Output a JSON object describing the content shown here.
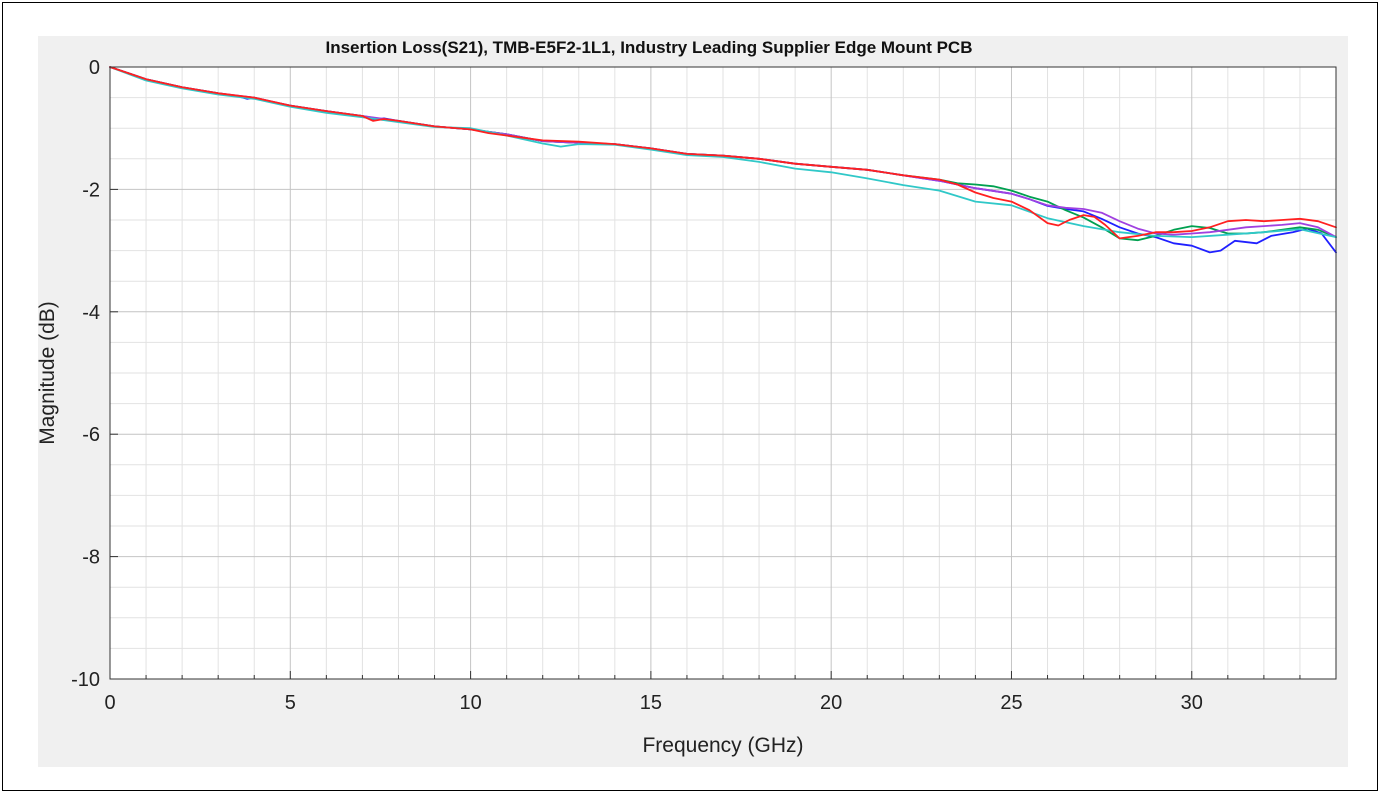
{
  "chart_data": {
    "type": "line",
    "title": "Insertion Loss(S21), TMB-E5F2-1L1, Industry Leading Supplier Edge Mount PCB",
    "xlabel": "Frequency (GHz)",
    "ylabel": "Magnitude (dB)",
    "xlim": [
      0,
      34
    ],
    "ylim": [
      -10,
      0
    ],
    "xticks": [
      0,
      5,
      10,
      15,
      20,
      25,
      30
    ],
    "yticks": [
      0,
      -2,
      -4,
      -6,
      -8,
      -10
    ],
    "grid": true,
    "minor_grid": true,
    "legend": "none",
    "series": [
      {
        "color": "#2020ff",
        "x": [
          0,
          1,
          2,
          3,
          3.5,
          3.8,
          4,
          4.5,
          5,
          6,
          7,
          7.3,
          7.6,
          8,
          9,
          10,
          11,
          12,
          13,
          14,
          15,
          16,
          17,
          18,
          19,
          20,
          21,
          22,
          23,
          24,
          25,
          25.5,
          26,
          26.5,
          27,
          27.5,
          28,
          28.5,
          29,
          29.5,
          30,
          30.5,
          30.8,
          31.2,
          31.8,
          32.2,
          32.8,
          33.2,
          33.6,
          34
        ],
        "y": [
          0,
          -0.2,
          -0.33,
          -0.43,
          -0.47,
          -0.52,
          -0.5,
          -0.57,
          -0.63,
          -0.72,
          -0.8,
          -0.86,
          -0.84,
          -0.88,
          -0.97,
          -1.02,
          -1.1,
          -1.21,
          -1.24,
          -1.26,
          -1.33,
          -1.42,
          -1.45,
          -1.5,
          -1.58,
          -1.63,
          -1.68,
          -1.77,
          -1.86,
          -1.98,
          -2.07,
          -2.16,
          -2.27,
          -2.32,
          -2.36,
          -2.48,
          -2.62,
          -2.72,
          -2.78,
          -2.88,
          -2.92,
          -3.03,
          -3.0,
          -2.84,
          -2.88,
          -2.76,
          -2.7,
          -2.64,
          -2.72,
          -3.03
        ]
      },
      {
        "color": "#00a050",
        "x": [
          0,
          1,
          2,
          3,
          3.5,
          4,
          4.5,
          5,
          6,
          7,
          7.5,
          8,
          9,
          10,
          11,
          12,
          13,
          14,
          15,
          16,
          17,
          18,
          19,
          20,
          21,
          22,
          23,
          23.5,
          24,
          24.5,
          25,
          25.5,
          26,
          26.5,
          27,
          27.5,
          28,
          28.5,
          29,
          29.5,
          30,
          30.5,
          31,
          31.5,
          32,
          32.5,
          33,
          33.5,
          34
        ],
        "y": [
          0,
          -0.2,
          -0.33,
          -0.43,
          -0.47,
          -0.5,
          -0.57,
          -0.63,
          -0.72,
          -0.8,
          -0.85,
          -0.88,
          -0.97,
          -1.02,
          -1.1,
          -1.21,
          -1.24,
          -1.26,
          -1.33,
          -1.42,
          -1.45,
          -1.5,
          -1.58,
          -1.63,
          -1.68,
          -1.77,
          -1.84,
          -1.9,
          -1.92,
          -1.95,
          -2.02,
          -2.12,
          -2.2,
          -2.34,
          -2.46,
          -2.62,
          -2.8,
          -2.83,
          -2.76,
          -2.66,
          -2.6,
          -2.63,
          -2.72,
          -2.72,
          -2.7,
          -2.66,
          -2.62,
          -2.66,
          -2.78
        ]
      },
      {
        "color": "#a040e0",
        "x": [
          0,
          1,
          2,
          3,
          4,
          5,
          6,
          7,
          8,
          9,
          10,
          11,
          12,
          13,
          14,
          15,
          16,
          17,
          18,
          19,
          20,
          21,
          22,
          23,
          24,
          25,
          25.5,
          26,
          26.5,
          27,
          27.5,
          28,
          28.5,
          29,
          29.5,
          30,
          30.5,
          31,
          31.5,
          32,
          32.5,
          33,
          33.5,
          34
        ],
        "y": [
          0,
          -0.2,
          -0.33,
          -0.43,
          -0.5,
          -0.63,
          -0.72,
          -0.8,
          -0.88,
          -0.97,
          -1.02,
          -1.1,
          -1.21,
          -1.24,
          -1.26,
          -1.33,
          -1.42,
          -1.45,
          -1.5,
          -1.58,
          -1.63,
          -1.68,
          -1.77,
          -1.86,
          -1.98,
          -2.07,
          -2.16,
          -2.26,
          -2.3,
          -2.32,
          -2.38,
          -2.52,
          -2.64,
          -2.72,
          -2.74,
          -2.72,
          -2.7,
          -2.66,
          -2.62,
          -2.6,
          -2.58,
          -2.55,
          -2.62,
          -2.78
        ]
      },
      {
        "color": "#30c8c8",
        "x": [
          0,
          1,
          2,
          3,
          4,
          5,
          6,
          7,
          8,
          9,
          10,
          11,
          12,
          12.5,
          13,
          14,
          15,
          16,
          17,
          18,
          19,
          20,
          21,
          22,
          23,
          24,
          25,
          26,
          27,
          28,
          29,
          30,
          31,
          32,
          33,
          34
        ],
        "y": [
          0,
          -0.22,
          -0.35,
          -0.45,
          -0.52,
          -0.65,
          -0.75,
          -0.82,
          -0.9,
          -0.98,
          -1.0,
          -1.12,
          -1.25,
          -1.3,
          -1.26,
          -1.27,
          -1.35,
          -1.44,
          -1.47,
          -1.55,
          -1.66,
          -1.72,
          -1.82,
          -1.93,
          -2.02,
          -2.2,
          -2.26,
          -2.47,
          -2.6,
          -2.7,
          -2.76,
          -2.78,
          -2.74,
          -2.7,
          -2.65,
          -2.78
        ]
      },
      {
        "color": "#ff2020",
        "x": [
          0,
          1,
          2,
          3,
          4,
          5,
          6,
          7,
          7.3,
          7.6,
          8,
          9,
          10,
          10.5,
          11,
          12,
          13,
          14,
          15,
          16,
          17,
          18,
          19,
          20,
          21,
          22,
          23,
          23.5,
          24,
          24.5,
          25,
          25.5,
          26,
          26.3,
          26.6,
          27,
          27.3,
          27.6,
          28,
          28.5,
          29,
          29.5,
          30,
          30.5,
          31,
          31.5,
          32,
          32.5,
          33,
          33.5,
          34
        ],
        "y": [
          0,
          -0.2,
          -0.33,
          -0.43,
          -0.5,
          -0.63,
          -0.72,
          -0.8,
          -0.88,
          -0.85,
          -0.88,
          -0.97,
          -1.02,
          -1.08,
          -1.12,
          -1.2,
          -1.22,
          -1.26,
          -1.33,
          -1.42,
          -1.45,
          -1.5,
          -1.58,
          -1.63,
          -1.68,
          -1.77,
          -1.84,
          -1.92,
          -2.05,
          -2.14,
          -2.2,
          -2.34,
          -2.55,
          -2.59,
          -2.5,
          -2.42,
          -2.45,
          -2.58,
          -2.8,
          -2.76,
          -2.7,
          -2.7,
          -2.68,
          -2.62,
          -2.52,
          -2.5,
          -2.52,
          -2.5,
          -2.48,
          -2.52,
          -2.62
        ]
      }
    ]
  }
}
